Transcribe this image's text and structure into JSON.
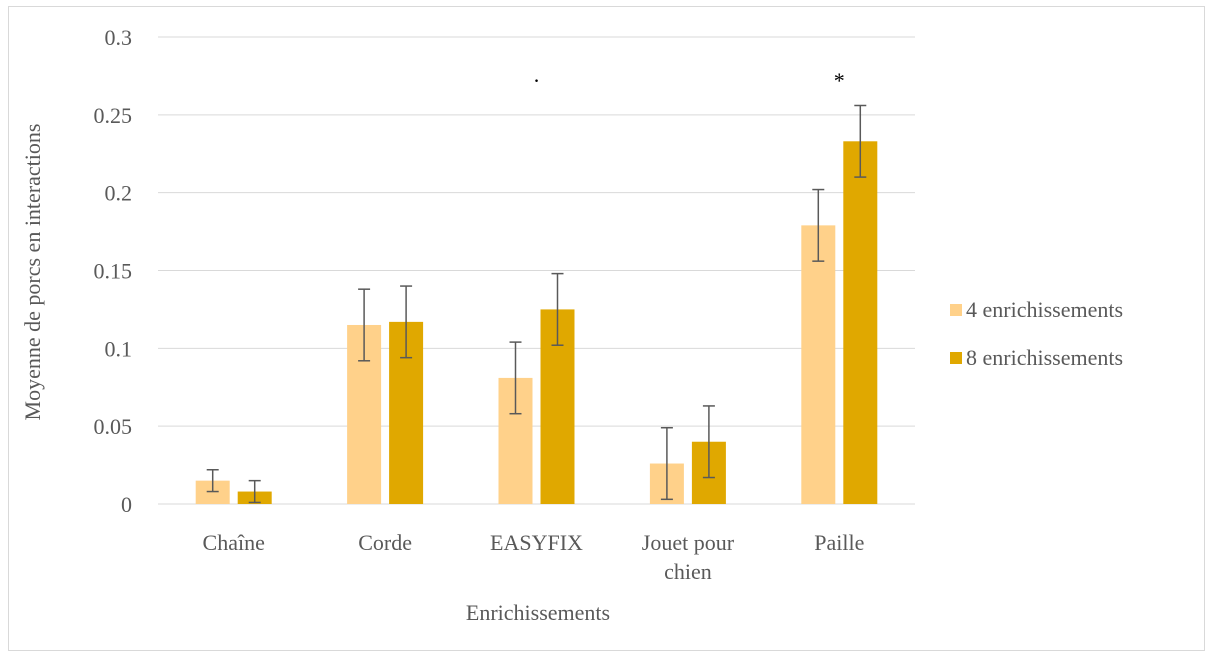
{
  "chart_data": {
    "type": "bar",
    "title": "",
    "xlabel": "Enrichissements",
    "ylabel": "Moyenne de porcs en interactions",
    "ylim": [
      0,
      0.3
    ],
    "yticks": [
      "0",
      "0.05",
      "0.1",
      "0.15",
      "0.2",
      "0.25",
      "0.3"
    ],
    "grid": true,
    "legend_position": "right",
    "categories": [
      [
        "Chaîne"
      ],
      [
        "Corde"
      ],
      [
        "EASYFIX"
      ],
      [
        "Jouet pour",
        "chien"
      ],
      [
        "Paille"
      ]
    ],
    "series": [
      {
        "name": "4 enrichissements",
        "color": "#ffd18a",
        "values": [
          0.015,
          0.115,
          0.081,
          0.026,
          0.179
        ],
        "error": [
          0.007,
          0.023,
          0.023,
          0.023,
          0.023
        ]
      },
      {
        "name": "8 enrichissements",
        "color": "#e0a800",
        "values": [
          0.008,
          0.117,
          0.125,
          0.04,
          0.233
        ],
        "error": [
          0.007,
          0.023,
          0.023,
          0.023,
          0.023
        ]
      }
    ],
    "annotations": [
      {
        "category_index": 2,
        "text": "·"
      },
      {
        "category_index": 4,
        "text": "*"
      }
    ]
  }
}
